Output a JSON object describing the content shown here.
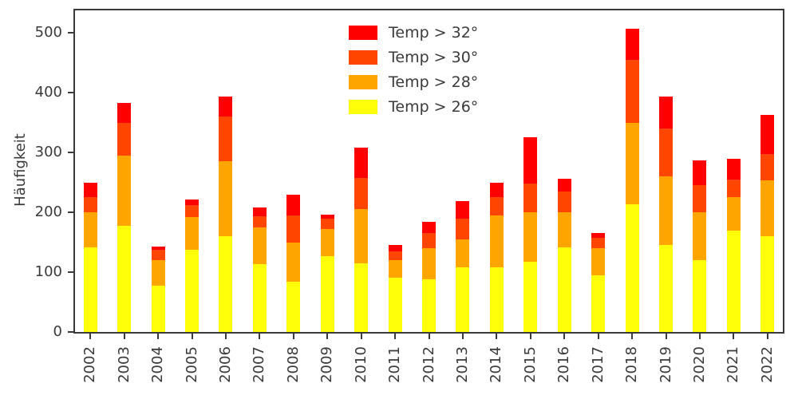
{
  "chart_data": {
    "type": "bar",
    "stacked": true,
    "title": "",
    "xlabel": "",
    "ylabel": "Häufigkeit",
    "ylim": [
      0,
      539
    ],
    "yticks": [
      0,
      100,
      200,
      300,
      400,
      500
    ],
    "grid": false,
    "legend_position": "upper center",
    "categories": [
      "2002",
      "2003",
      "2004",
      "2005",
      "2006",
      "2007",
      "2008",
      "2009",
      "2010",
      "2011",
      "2012",
      "2013",
      "2014",
      "2015",
      "2016",
      "2017",
      "2018",
      "2019",
      "2020",
      "2021",
      "2022"
    ],
    "series": [
      {
        "name": "Temp > 26°",
        "color": "#ffff0a",
        "values": [
          142,
          178,
          78,
          138,
          160,
          113,
          84,
          127,
          115,
          91,
          88,
          108,
          108,
          118,
          141,
          95,
          214,
          146,
          120,
          170,
          160
        ]
      },
      {
        "name": "Temp > 28°",
        "color": "#ffa500",
        "values": [
          58,
          117,
          42,
          54,
          125,
          62,
          66,
          45,
          90,
          29,
          52,
          47,
          87,
          82,
          59,
          45,
          136,
          114,
          80,
          55,
          93
        ]
      },
      {
        "name": "Temp > 30°",
        "color": "#ff4500",
        "values": [
          25,
          55,
          17,
          20,
          75,
          18,
          45,
          18,
          53,
          15,
          25,
          35,
          30,
          48,
          35,
          18,
          105,
          80,
          45,
          30,
          45
        ]
      },
      {
        "name": "Temp > 32°",
        "color": "#ff0000",
        "values": [
          25,
          33,
          6,
          9,
          34,
          15,
          34,
          6,
          50,
          10,
          19,
          29,
          25,
          78,
          21,
          7,
          52,
          54,
          42,
          34,
          65
        ]
      }
    ],
    "legend_order_top_to_bottom": [
      "Temp > 32°",
      "Temp > 30°",
      "Temp > 28°",
      "Temp > 26°"
    ],
    "totals": [
      250,
      383,
      143,
      221,
      394,
      208,
      229,
      196,
      308,
      145,
      184,
      219,
      250,
      326,
      256,
      165,
      507,
      394,
      287,
      289,
      363
    ]
  },
  "axis": {
    "text_color": "#3a3a3a"
  }
}
